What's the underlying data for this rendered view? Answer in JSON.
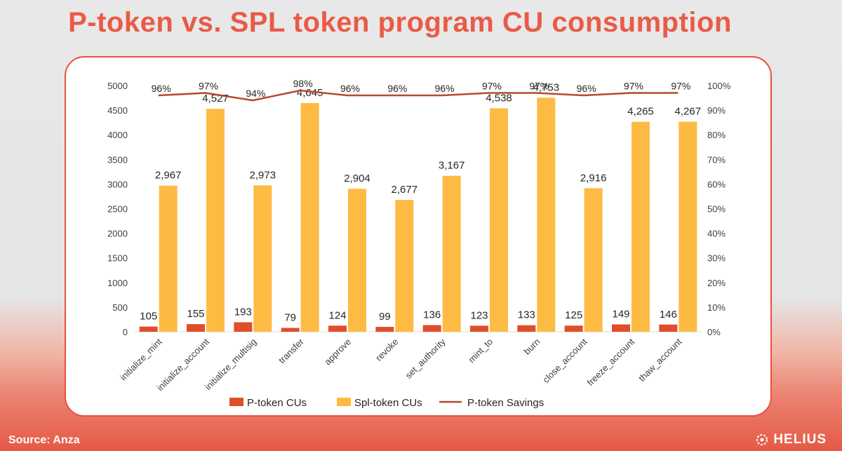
{
  "title": "P-token vs. SPL token program CU consumption",
  "source": "Source: Anza",
  "brand": "HELIUS",
  "colors": {
    "ptoken": "#e04e2a",
    "spl": "#fdbb44",
    "savings": "#b6492d",
    "accent": "#ea5a46"
  },
  "chart_data": {
    "type": "bar",
    "categories": [
      "initialize_mint",
      "initialize_account",
      "initialize_multisig",
      "transfer",
      "approve",
      "revoke",
      "set_authority",
      "mint_to",
      "burn",
      "close_account",
      "freeze_account",
      "thaw_account"
    ],
    "series": [
      {
        "name": "P-token CUs",
        "type": "bar",
        "axis": "left",
        "values": [
          105,
          155,
          193,
          79,
          124,
          99,
          136,
          123,
          133,
          125,
          149,
          146
        ],
        "labels": [
          "105",
          "155",
          "193",
          "79",
          "124",
          "99",
          "136",
          "123",
          "133",
          "125",
          "149",
          "146"
        ]
      },
      {
        "name": "Spl-token CUs",
        "type": "bar",
        "axis": "left",
        "values": [
          2967,
          4527,
          2973,
          4645,
          2904,
          2677,
          3167,
          4538,
          4753,
          2916,
          4265,
          4267
        ],
        "labels": [
          "2,967",
          "4,527",
          "2,973",
          "4,645",
          "2,904",
          "2,677",
          "3,167",
          "4,538",
          "4,753",
          "2,916",
          "4,265",
          "4,267"
        ]
      },
      {
        "name": "P-token Savings",
        "type": "line",
        "axis": "right",
        "values": [
          96,
          97,
          94,
          98,
          96,
          96,
          96,
          97,
          97,
          96,
          97,
          97
        ],
        "labels": [
          "96%",
          "97%",
          "94%",
          "98%",
          "96%",
          "96%",
          "96%",
          "97%",
          "97%",
          "96%",
          "97%",
          "97%"
        ]
      }
    ],
    "y_left": {
      "min": 0,
      "max": 5000,
      "step": 500,
      "ticks": [
        "0",
        "500",
        "1000",
        "1500",
        "2000",
        "2500",
        "3000",
        "3500",
        "4000",
        "4500",
        "5000"
      ]
    },
    "y_right": {
      "min": 0,
      "max": 100,
      "step": 10,
      "ticks": [
        "0%",
        "10%",
        "20%",
        "30%",
        "40%",
        "50%",
        "60%",
        "70%",
        "80%",
        "90%",
        "100%"
      ]
    },
    "grid": false,
    "legend_position": "bottom"
  }
}
